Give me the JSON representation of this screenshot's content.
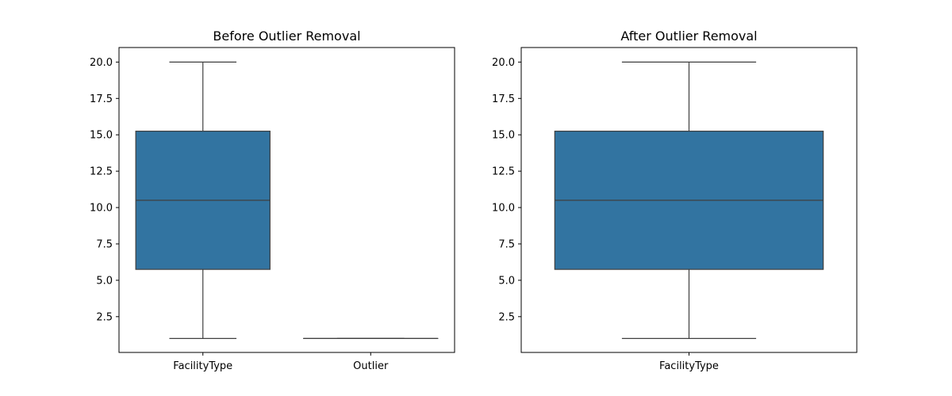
{
  "chart_data": [
    {
      "type": "box",
      "title": "Before Outlier Removal",
      "xlabel": "",
      "ylabel": "",
      "ylim": [
        0.04,
        21.0
      ],
      "yticks": [
        2.5,
        5.0,
        7.5,
        10.0,
        12.5,
        15.0,
        17.5,
        20.0
      ],
      "ytick_labels": [
        "2.5",
        "5.0",
        "7.5",
        "10.0",
        "12.5",
        "15.0",
        "17.5",
        "20.0"
      ],
      "grid": false,
      "color": "#3274a1",
      "categories": [
        "FacilityType",
        "Outlier"
      ],
      "boxes": [
        {
          "category": "FacilityType",
          "whislo": 1.0,
          "q1": 5.75,
          "med": 10.5,
          "q3": 15.25,
          "whishi": 20.0
        },
        {
          "category": "Outlier",
          "whislo": 1.0,
          "q1": 1.0,
          "med": 1.0,
          "q3": 1.0,
          "whishi": 1.0
        }
      ]
    },
    {
      "type": "box",
      "title": "After Outlier Removal",
      "xlabel": "",
      "ylabel": "",
      "ylim": [
        0.04,
        21.0
      ],
      "yticks": [
        2.5,
        5.0,
        7.5,
        10.0,
        12.5,
        15.0,
        17.5,
        20.0
      ],
      "ytick_labels": [
        "2.5",
        "5.0",
        "7.5",
        "10.0",
        "12.5",
        "15.0",
        "17.5",
        "20.0"
      ],
      "grid": false,
      "color": "#3274a1",
      "categories": [
        "FacilityType"
      ],
      "boxes": [
        {
          "category": "FacilityType",
          "whislo": 1.0,
          "q1": 5.75,
          "med": 10.5,
          "q3": 15.25,
          "whishi": 20.0
        }
      ]
    }
  ]
}
